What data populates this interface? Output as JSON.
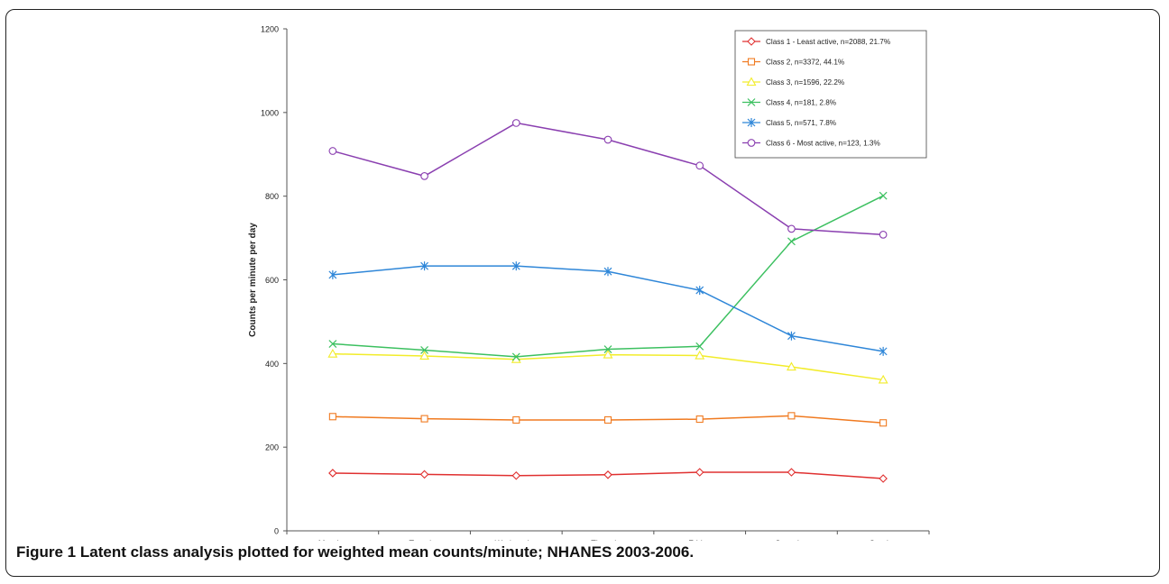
{
  "caption": {
    "label": "Figure 1",
    "text": "Latent class analysis plotted for weighted mean counts/minute; NHANES 2003-2006."
  },
  "chart_data": {
    "type": "line",
    "title": "",
    "xlabel": "",
    "ylabel": "Counts per minute per day",
    "ylim": [
      0,
      1200
    ],
    "yticks": [
      0,
      200,
      400,
      600,
      800,
      1000,
      1200
    ],
    "grid": false,
    "legend_position": "top-right",
    "categories": [
      "Monday",
      "Tuesday",
      "Wednesday",
      "Thursday",
      "Friday",
      "Saturday",
      "Sunday"
    ],
    "series": [
      {
        "name": "Class 1 - Least active, n=2088, 21.7%",
        "color": "#e03030",
        "marker": "diamond",
        "values": [
          138,
          135,
          132,
          134,
          140,
          140,
          125
        ]
      },
      {
        "name": "Class 2, n=3372, 44.1%",
        "color": "#f07a20",
        "marker": "square",
        "values": [
          273,
          268,
          265,
          265,
          267,
          275,
          258
        ]
      },
      {
        "name": "Class 3, n=1596, 22.2%",
        "color": "#f2ec2a",
        "marker": "triangle",
        "values": [
          423,
          418,
          410,
          421,
          419,
          392,
          361
        ]
      },
      {
        "name": "Class 4, n=181, 2.8%",
        "color": "#3cc060",
        "marker": "x",
        "values": [
          447,
          432,
          416,
          434,
          441,
          692,
          801
        ]
      },
      {
        "name": "Class 5, n=571, 7.8%",
        "color": "#2e86d8",
        "marker": "asterisk",
        "values": [
          612,
          633,
          633,
          620,
          575,
          466,
          429
        ]
      },
      {
        "name": "Class 6 - Most active, n=123, 1.3%",
        "color": "#8a3fb0",
        "marker": "circle",
        "values": [
          908,
          848,
          975,
          935,
          873,
          722,
          708
        ]
      }
    ]
  }
}
